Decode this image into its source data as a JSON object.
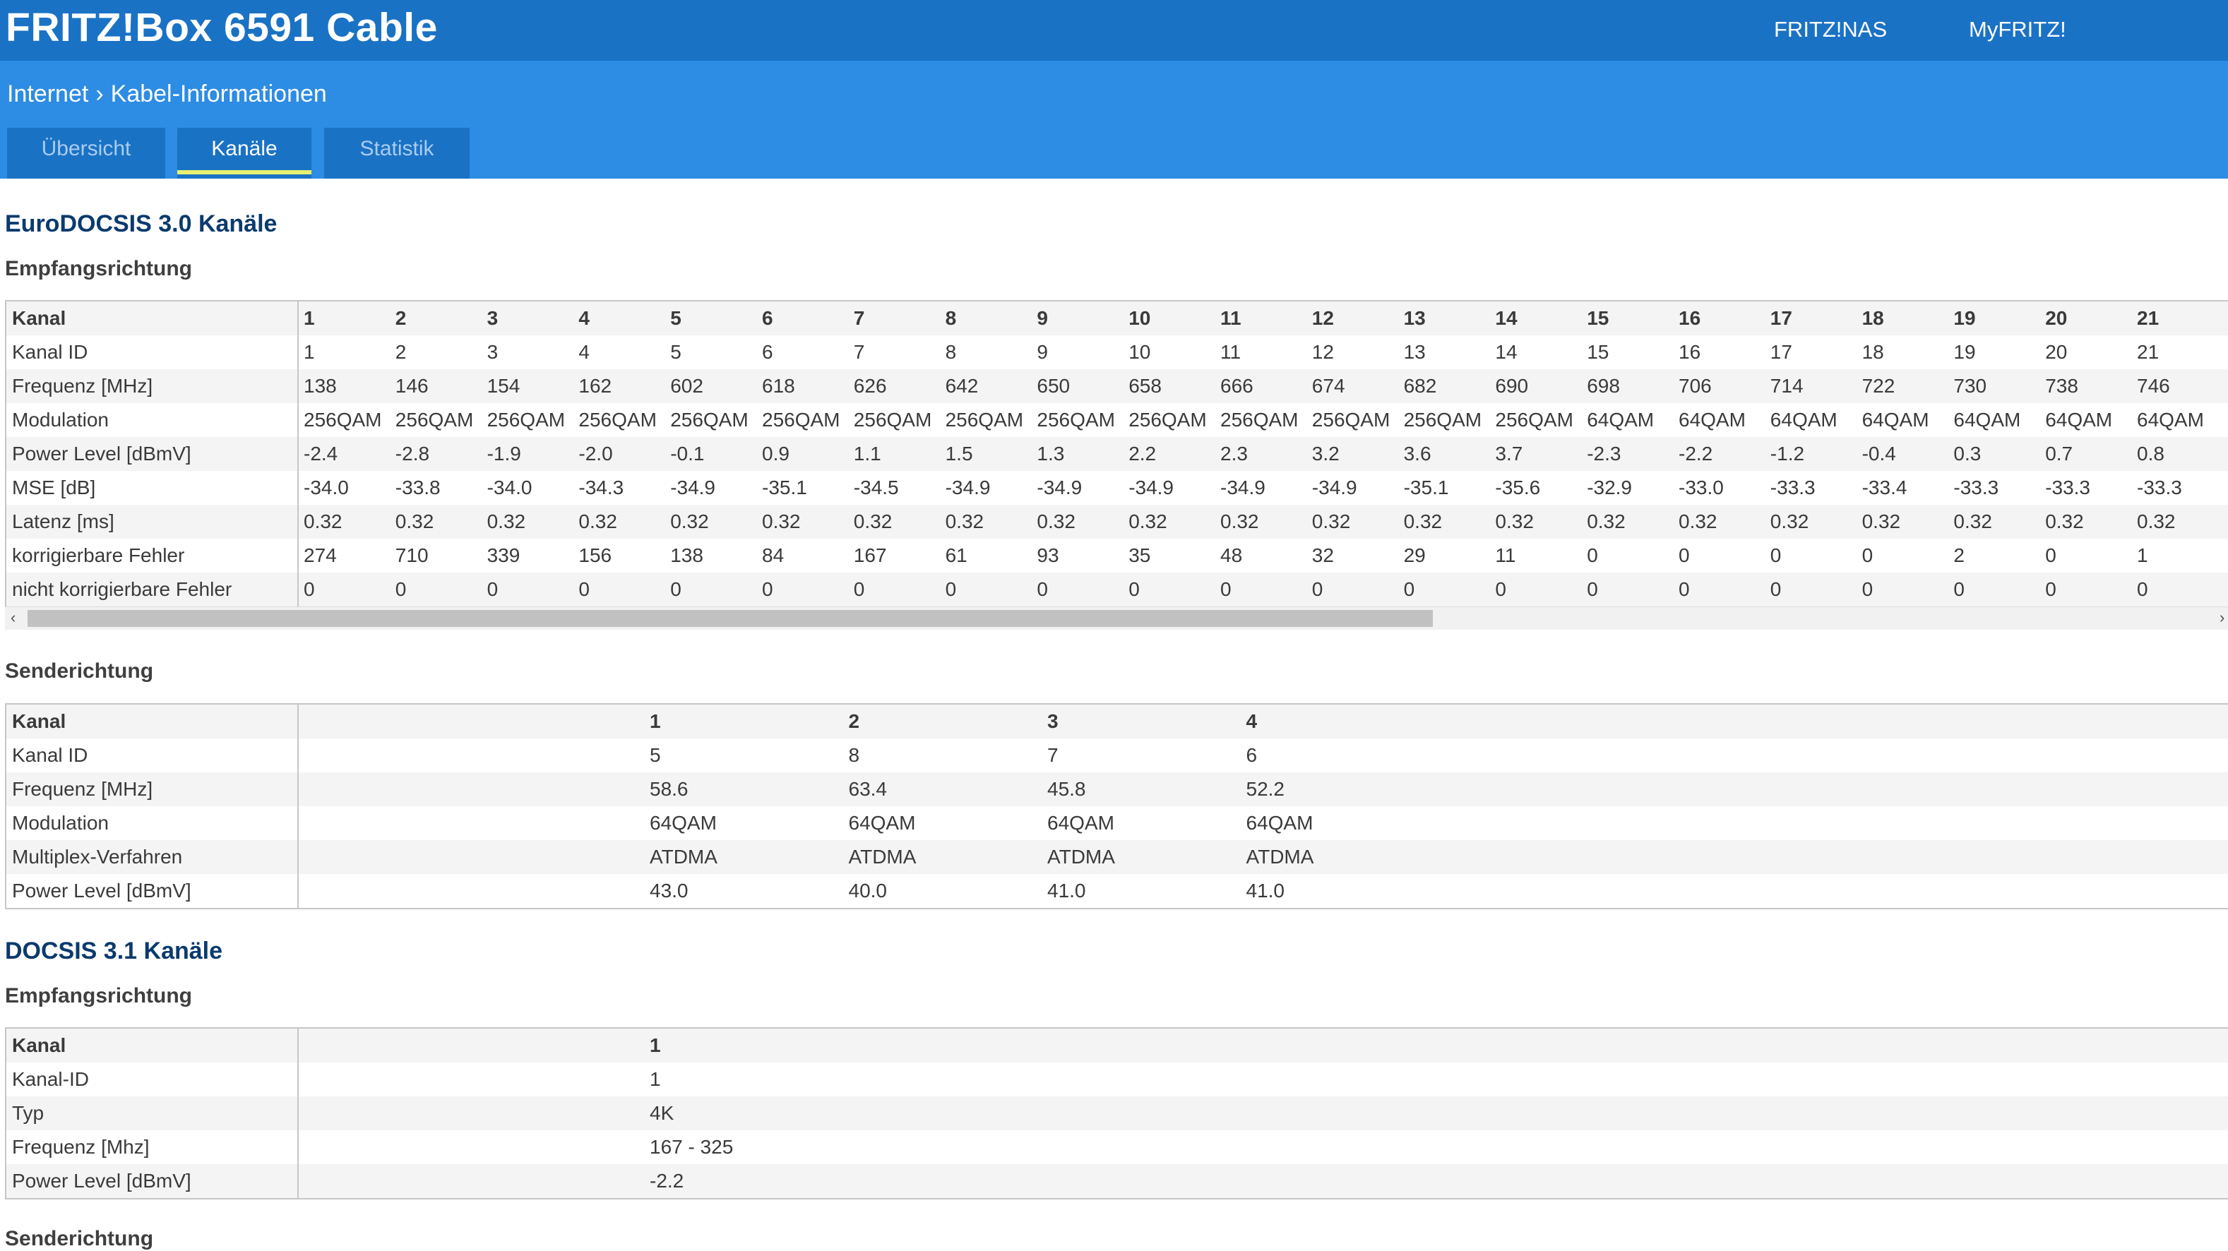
{
  "header": {
    "brand": "FRITZ!Box 6591 Cable",
    "links": [
      "FRITZ!NAS",
      "MyFRITZ!"
    ]
  },
  "breadcrumb": {
    "parent": "Internet",
    "separator": "›",
    "current": "Kabel-Informationen"
  },
  "tabs": {
    "overview": "Übersicht",
    "channels": "Kanäle",
    "statistics": "Statistik",
    "active": "channels"
  },
  "docsis30": {
    "title": "EuroDOCSIS 3.0 Kanäle",
    "downstream": {
      "title": "Empfangsrichtung",
      "rows": [
        {
          "label": "Kanal",
          "values": [
            "1",
            "2",
            "3",
            "4",
            "5",
            "6",
            "7",
            "8",
            "9",
            "10",
            "11",
            "12",
            "13",
            "14",
            "15",
            "16",
            "17",
            "18",
            "19",
            "20",
            "21"
          ]
        },
        {
          "label": "Kanal ID",
          "values": [
            "1",
            "2",
            "3",
            "4",
            "5",
            "6",
            "7",
            "8",
            "9",
            "10",
            "11",
            "12",
            "13",
            "14",
            "15",
            "16",
            "17",
            "18",
            "19",
            "20",
            "21"
          ]
        },
        {
          "label": "Frequenz [MHz]",
          "values": [
            "138",
            "146",
            "154",
            "162",
            "602",
            "618",
            "626",
            "642",
            "650",
            "658",
            "666",
            "674",
            "682",
            "690",
            "698",
            "706",
            "714",
            "722",
            "730",
            "738",
            "746"
          ]
        },
        {
          "label": "Modulation",
          "values": [
            "256QAM",
            "256QAM",
            "256QAM",
            "256QAM",
            "256QAM",
            "256QAM",
            "256QAM",
            "256QAM",
            "256QAM",
            "256QAM",
            "256QAM",
            "256QAM",
            "256QAM",
            "256QAM",
            "64QAM",
            "64QAM",
            "64QAM",
            "64QAM",
            "64QAM",
            "64QAM",
            "64QAM"
          ]
        },
        {
          "label": "Power Level [dBmV]",
          "values": [
            "-2.4",
            "-2.8",
            "-1.9",
            "-2.0",
            "-0.1",
            "0.9",
            "1.1",
            "1.5",
            "1.3",
            "2.2",
            "2.3",
            "3.2",
            "3.6",
            "3.7",
            "-2.3",
            "-2.2",
            "-1.2",
            "-0.4",
            "0.3",
            "0.7",
            "0.8"
          ]
        },
        {
          "label": "MSE [dB]",
          "values": [
            "-34.0",
            "-33.8",
            "-34.0",
            "-34.3",
            "-34.9",
            "-35.1",
            "-34.5",
            "-34.9",
            "-34.9",
            "-34.9",
            "-34.9",
            "-34.9",
            "-35.1",
            "-35.6",
            "-32.9",
            "-33.0",
            "-33.3",
            "-33.4",
            "-33.3",
            "-33.3",
            "-33.3"
          ]
        },
        {
          "label": "Latenz [ms]",
          "values": [
            "0.32",
            "0.32",
            "0.32",
            "0.32",
            "0.32",
            "0.32",
            "0.32",
            "0.32",
            "0.32",
            "0.32",
            "0.32",
            "0.32",
            "0.32",
            "0.32",
            "0.32",
            "0.32",
            "0.32",
            "0.32",
            "0.32",
            "0.32",
            "0.32"
          ]
        },
        {
          "label": "korrigierbare Fehler",
          "values": [
            "274",
            "710",
            "339",
            "156",
            "138",
            "84",
            "167",
            "61",
            "93",
            "35",
            "48",
            "32",
            "29",
            "11",
            "0",
            "0",
            "0",
            "0",
            "2",
            "0",
            "1"
          ]
        },
        {
          "label": "nicht korrigierbare Fehler",
          "values": [
            "0",
            "0",
            "0",
            "0",
            "0",
            "0",
            "0",
            "0",
            "0",
            "0",
            "0",
            "0",
            "0",
            "0",
            "0",
            "0",
            "0",
            "0",
            "0",
            "0",
            "0"
          ]
        }
      ],
      "scroll_left": "‹",
      "scroll_right": "›"
    },
    "upstream": {
      "title": "Senderichtung",
      "rows": [
        {
          "label": "Kanal",
          "values": [
            "1",
            "2",
            "3",
            "4"
          ]
        },
        {
          "label": "Kanal ID",
          "values": [
            "5",
            "8",
            "7",
            "6"
          ]
        },
        {
          "label": "Frequenz [MHz]",
          "values": [
            "58.6",
            "63.4",
            "45.8",
            "52.2"
          ]
        },
        {
          "label": "Modulation",
          "values": [
            "64QAM",
            "64QAM",
            "64QAM",
            "64QAM"
          ]
        },
        {
          "label": "Multiplex-Verfahren",
          "values": [
            "ATDMA",
            "ATDMA",
            "ATDMA",
            "ATDMA"
          ]
        },
        {
          "label": "Power Level [dBmV]",
          "values": [
            "43.0",
            "40.0",
            "41.0",
            "41.0"
          ]
        }
      ]
    }
  },
  "docsis31": {
    "title": "DOCSIS 3.1 Kanäle",
    "downstream": {
      "title": "Empfangsrichtung",
      "rows": [
        {
          "label": "Kanal",
          "values": [
            "1"
          ]
        },
        {
          "label": "Kanal-ID",
          "values": [
            "1"
          ]
        },
        {
          "label": "Typ",
          "values": [
            "4K"
          ]
        },
        {
          "label": "Frequenz [Mhz]",
          "values": [
            "167 - 325"
          ]
        },
        {
          "label": "Power Level [dBmV]",
          "values": [
            "-2.2"
          ]
        }
      ]
    },
    "upstream_title": "Senderichtung"
  }
}
